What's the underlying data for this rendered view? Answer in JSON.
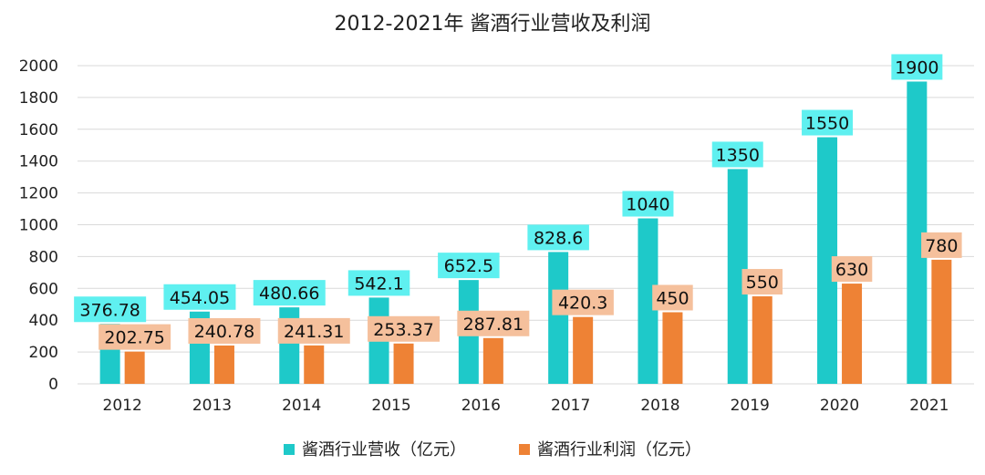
{
  "chart_data": {
    "type": "bar",
    "title": "2012-2021年 酱酒行业营收及利润",
    "categories": [
      "2012",
      "2013",
      "2014",
      "2015",
      "2016",
      "2017",
      "2018",
      "2019",
      "2020",
      "2021"
    ],
    "series": [
      {
        "name": "酱酒行业营收（亿元）",
        "values": [
          376.78,
          454.05,
          480.66,
          542.1,
          652.5,
          828.6,
          1040,
          1350,
          1550,
          1900
        ],
        "labels": [
          "376.78",
          "454.05",
          "480.66",
          "542.1",
          "652.5",
          "828.6",
          "1040",
          "1350",
          "1550",
          "1900"
        ],
        "color": "#1ec9c9",
        "label_bg": "#5ff0f0"
      },
      {
        "name": "酱酒行业利润（亿元）",
        "values": [
          202.75,
          240.78,
          241.31,
          253.37,
          287.81,
          420.3,
          450,
          550,
          630,
          780
        ],
        "labels": [
          "202.75",
          "240.78",
          "241.31",
          "253.37",
          "287.81",
          "420.3",
          "450",
          "550",
          "630",
          "780"
        ],
        "color": "#ee8235",
        "label_bg": "#f5c09c"
      }
    ],
    "y_ticks": [
      "0",
      "200",
      "400",
      "600",
      "800",
      "1000",
      "1200",
      "1400",
      "1600",
      "1800",
      "2000"
    ],
    "ylim": [
      0,
      2000
    ],
    "grid": true,
    "legend_position": "bottom-center"
  }
}
